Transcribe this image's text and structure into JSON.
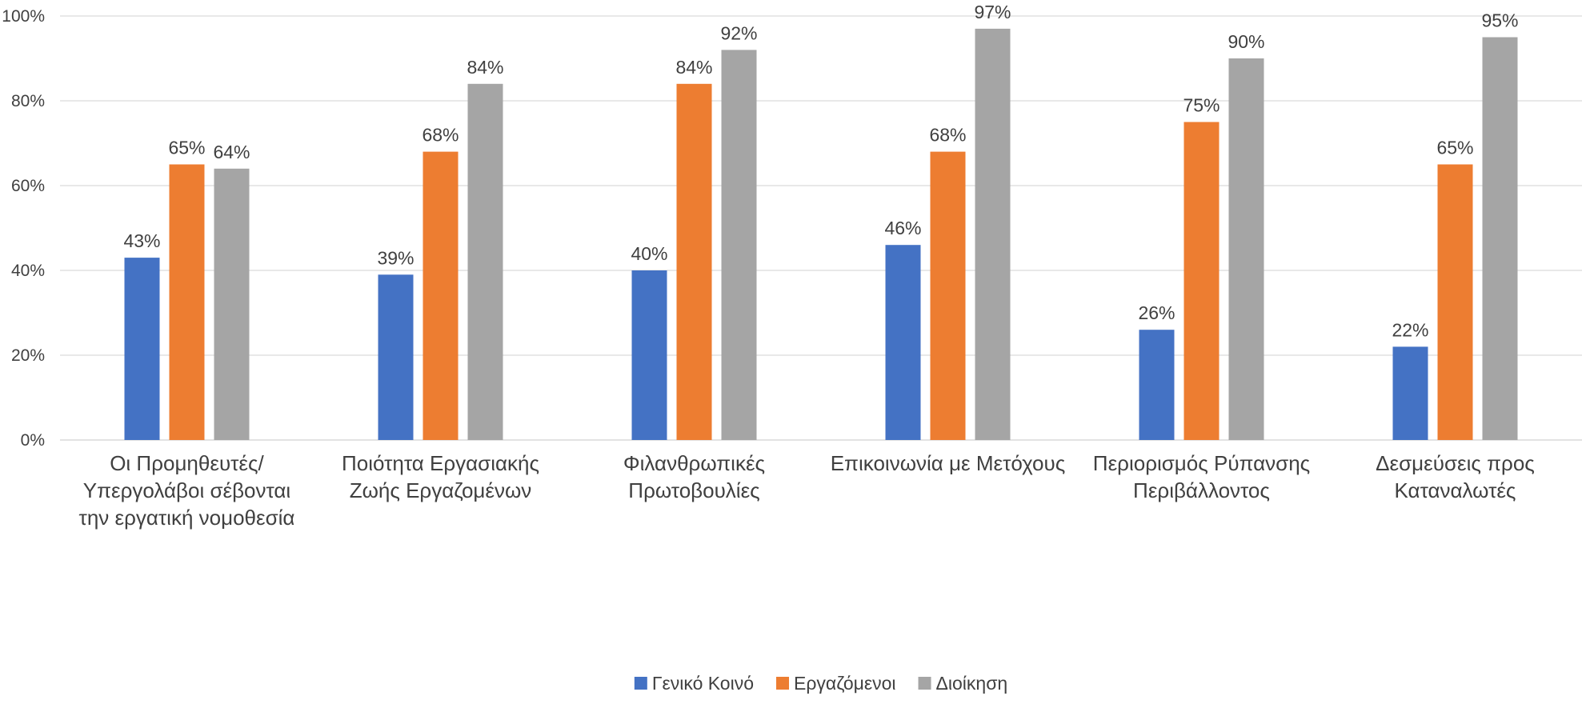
{
  "chart_data": {
    "type": "bar",
    "title": "",
    "xlabel": "",
    "ylabel": "",
    "ylim": [
      0,
      100
    ],
    "y_ticks": [
      "0%",
      "20%",
      "40%",
      "60%",
      "80%",
      "100%"
    ],
    "grid": true,
    "legend_position": "bottom",
    "value_suffix": "%",
    "categories": [
      [
        "Οι Προμηθευτές/",
        "Υπεργολάβοι σέβονται",
        "την εργατική νομοθεσία"
      ],
      [
        "Ποιότητα Εργασιακής",
        "Ζωής Εργαζομένων"
      ],
      [
        "Φιλανθρωπικές",
        "Πρωτοβουλίες"
      ],
      [
        "Επικοινωνία με Μετόχους"
      ],
      [
        "Περιορισμός Ρύπανσης",
        "Περιβάλλοντος"
      ],
      [
        "Δεσμεύσεις προς",
        "Καταναλωτές"
      ]
    ],
    "series": [
      {
        "name": "Γενικό Κοινό",
        "color": "#4472C4",
        "values": [
          43,
          39,
          40,
          46,
          26,
          22
        ]
      },
      {
        "name": "Εργαζόμενοι",
        "color": "#ED7D31",
        "values": [
          65,
          68,
          84,
          68,
          75,
          65
        ]
      },
      {
        "name": "Διοίκηση",
        "color": "#A5A5A5",
        "values": [
          64,
          84,
          92,
          97,
          90,
          95
        ]
      }
    ]
  }
}
